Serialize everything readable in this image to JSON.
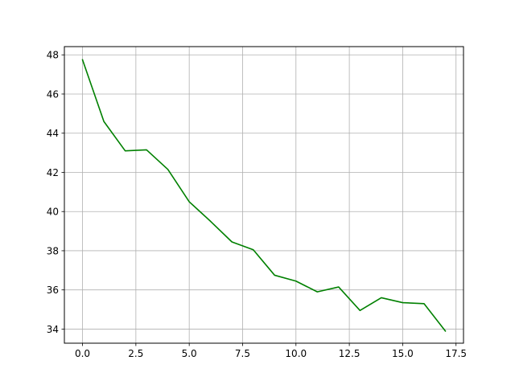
{
  "chart_data": {
    "type": "line",
    "title": "",
    "xlabel": "",
    "ylabel": "",
    "grid": true,
    "xlim": [
      -0.85,
      17.85
    ],
    "ylim": [
      33.28,
      48.42
    ],
    "x_ticks": [
      0.0,
      2.5,
      5.0,
      7.5,
      10.0,
      12.5,
      15.0,
      17.5
    ],
    "x_tick_labels": [
      "0.0",
      "2.5",
      "5.0",
      "7.5",
      "10.0",
      "12.5",
      "15.0",
      "17.5"
    ],
    "y_ticks": [
      34,
      36,
      38,
      40,
      42,
      44,
      46,
      48
    ],
    "y_tick_labels": [
      "34",
      "36",
      "38",
      "40",
      "42",
      "44",
      "46",
      "48"
    ],
    "series": [
      {
        "color": "#008000",
        "x": [
          0,
          1,
          2,
          3,
          4,
          5,
          6,
          7,
          8,
          9,
          10,
          11,
          12,
          13,
          14,
          15,
          16,
          17
        ],
        "y": [
          47.75,
          44.6,
          43.1,
          43.15,
          42.15,
          40.5,
          39.5,
          38.45,
          38.05,
          36.75,
          36.45,
          35.9,
          36.15,
          34.95,
          35.6,
          35.35,
          35.3,
          33.9
        ]
      }
    ]
  }
}
